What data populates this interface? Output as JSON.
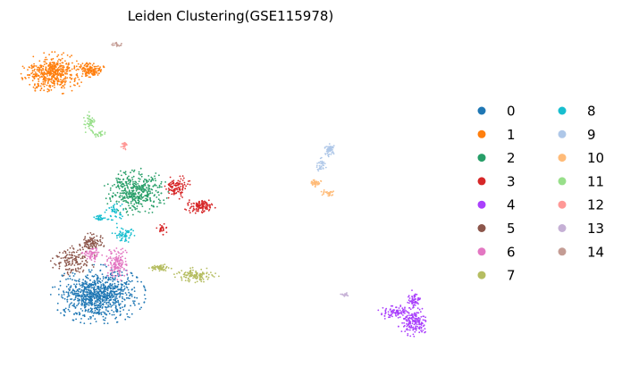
{
  "chart_data": {
    "type": "scatter",
    "title": "Leiden Clustering(GSE115978)",
    "xlabel": "",
    "ylabel": "",
    "grid": false,
    "axes_visible": false,
    "legend_placement": "right, two columns",
    "series": [
      {
        "name": "0",
        "color": "#1f77b4",
        "n": 900,
        "blobs": [
          [
            110,
            330,
            38,
            24,
            1
          ]
        ]
      },
      {
        "name": "1",
        "color": "#ff7f0e",
        "n": 620,
        "blobs": [
          [
            60,
            82,
            26,
            17,
            0.8
          ],
          [
            102,
            78,
            11,
            6,
            0.2
          ]
        ]
      },
      {
        "name": "2",
        "color": "#279e68",
        "n": 420,
        "blobs": [
          [
            152,
            215,
            26,
            19,
            1
          ]
        ]
      },
      {
        "name": "3",
        "color": "#d62728",
        "n": 250,
        "blobs": [
          [
            198,
            210,
            12,
            10,
            0.45
          ],
          [
            223,
            231,
            14,
            6,
            0.45
          ],
          [
            181,
            256,
            5,
            5,
            0.1
          ]
        ]
      },
      {
        "name": "4",
        "color": "#aa40fc",
        "n": 320,
        "blobs": [
          [
            463,
            336,
            6,
            8,
            0.2
          ],
          [
            442,
            350,
            14,
            6,
            0.25
          ],
          [
            463,
            360,
            13,
            12,
            0.55
          ]
        ]
      },
      {
        "name": "5",
        "color": "#8c564b",
        "n": 240,
        "blobs": [
          [
            82,
            292,
            18,
            13,
            0.6
          ],
          [
            103,
            272,
            10,
            8,
            0.4
          ]
        ]
      },
      {
        "name": "6",
        "color": "#e377c2",
        "n": 200,
        "blobs": [
          [
            131,
            295,
            10,
            14,
            0.7
          ],
          [
            103,
            285,
            8,
            6,
            0.3
          ]
        ]
      },
      {
        "name": "7",
        "color": "#b5bd61",
        "n": 190,
        "blobs": [
          [
            178,
            300,
            10,
            3,
            0.35
          ],
          [
            220,
            308,
            18,
            6,
            0.65
          ]
        ]
      },
      {
        "name": "8",
        "color": "#17becf",
        "n": 130,
        "blobs": [
          [
            138,
            263,
            9,
            7,
            0.45
          ],
          [
            128,
            238,
            10,
            9,
            0.35
          ],
          [
            112,
            244,
            5,
            4,
            0.2
          ]
        ]
      },
      {
        "name": "9",
        "color": "#aec7e8",
        "n": 90,
        "blobs": [
          [
            368,
            167,
            5,
            6,
            0.6
          ],
          [
            360,
            185,
            4,
            6,
            0.4
          ]
        ]
      },
      {
        "name": "10",
        "color": "#ffbb78",
        "n": 70,
        "blobs": [
          [
            352,
            205,
            6,
            3,
            0.6
          ],
          [
            367,
            216,
            6,
            3,
            0.4
          ]
        ]
      },
      {
        "name": "11",
        "color": "#98df8a",
        "n": 70,
        "blobs": [
          [
            100,
            138,
            5,
            9,
            0.7
          ],
          [
            111,
            150,
            6,
            3,
            0.3
          ]
        ]
      },
      {
        "name": "12",
        "color": "#ff9896",
        "n": 25,
        "blobs": [
          [
            138,
            163,
            3,
            4,
            1
          ]
        ]
      },
      {
        "name": "13",
        "color": "#c5b0d5",
        "n": 15,
        "blobs": [
          [
            386,
            330,
            4,
            2,
            1
          ]
        ]
      },
      {
        "name": "14",
        "color": "#c49c94",
        "n": 18,
        "blobs": [
          [
            131,
            50,
            7,
            2,
            1
          ]
        ]
      }
    ]
  }
}
